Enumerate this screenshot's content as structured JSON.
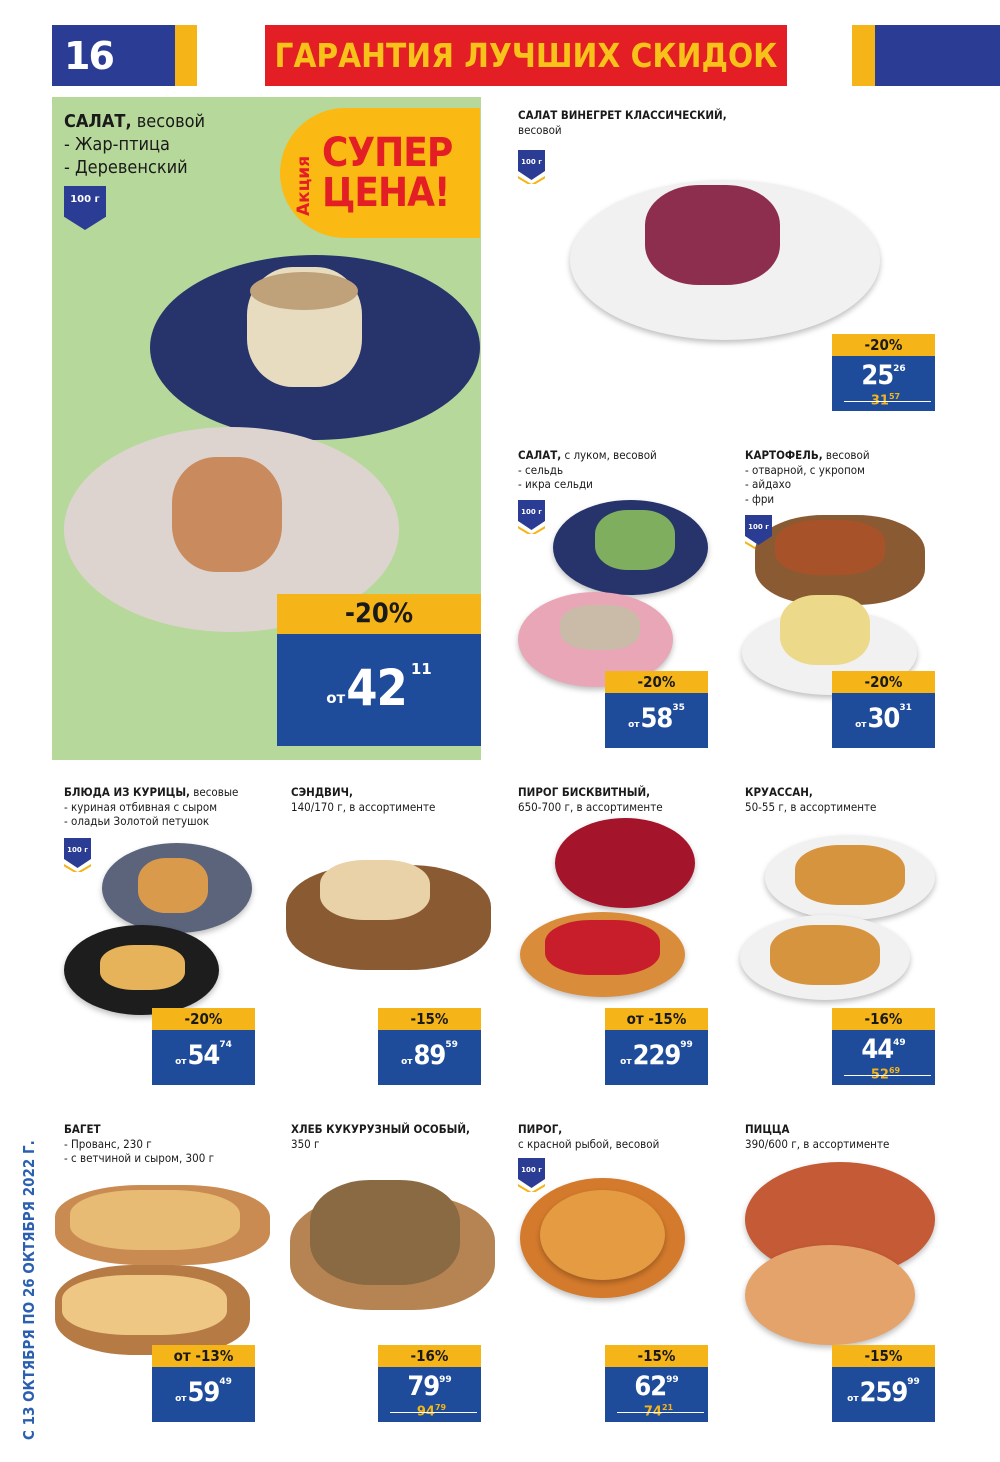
{
  "header": {
    "page_number": "16",
    "banner": "ГАРАНТИЯ ЛУЧШИХ СКИДОК"
  },
  "validity": "С 13 ОКТЯБРЯ ПО 26 ОКТЯБРЯ 2022 Г.",
  "colors": {
    "blue": "#2b3c94",
    "price_blue": "#1e4c9a",
    "yellow": "#f5b518",
    "red": "#e31e24",
    "hero_green": "#b6d99b"
  },
  "hero": {
    "title_bold": "САЛАТ,",
    "title_rest": " весовой",
    "lines": [
      "- Жар-птица",
      "- Деревенский"
    ],
    "weight": "100 г",
    "promo": {
      "small": "Акция",
      "line1": "СУПЕР",
      "line2": "ЦЕНА!"
    },
    "price": {
      "discount": "-20%",
      "prefix": "от",
      "int": "42",
      "dec": "11"
    }
  },
  "products": [
    {
      "title_bold": "САЛАТ ВИНЕГРЕТ КЛАССИЧЕСКИЙ,",
      "title_rest": "",
      "lines": [
        "весовой"
      ],
      "weight": "100 г",
      "price": {
        "discount": "-20%",
        "prefix": "",
        "int": "25",
        "dec": "26",
        "old_int": "31",
        "old_dec": "57"
      }
    },
    {
      "title_bold": "САЛАТ,",
      "title_rest": " с луком, весовой",
      "lines": [
        "- сельдь",
        "- икра сельди"
      ],
      "weight": "100 г",
      "price": {
        "discount": "-20%",
        "prefix": "от",
        "int": "58",
        "dec": "35"
      }
    },
    {
      "title_bold": "КАРТОФЕЛЬ,",
      "title_rest": " весовой",
      "lines": [
        "- отварной, с укропом",
        "- айдахо",
        "- фри"
      ],
      "weight": "100 г",
      "price": {
        "discount": "-20%",
        "prefix": "от",
        "int": "30",
        "dec": "31"
      }
    },
    {
      "title_bold": "БЛЮДА ИЗ КУРИЦЫ,",
      "title_rest": " весовые",
      "lines": [
        "- куриная отбивная с сыром",
        "- оладьи Золотой петушок"
      ],
      "weight": "100 г",
      "price": {
        "discount": "-20%",
        "prefix": "от",
        "int": "54",
        "dec": "74"
      }
    },
    {
      "title_bold": "СЭНДВИЧ,",
      "title_rest": "",
      "lines": [
        "140/170 г, в ассортименте"
      ],
      "weight": "",
      "price": {
        "discount": "-15%",
        "prefix": "от",
        "int": "89",
        "dec": "59"
      }
    },
    {
      "title_bold": "ПИРОГ БИСКВИТНЫЙ,",
      "title_rest": "",
      "lines": [
        "650-700 г, в ассортименте"
      ],
      "weight": "",
      "price": {
        "discount": "от -15%",
        "prefix": "от",
        "int": "229",
        "dec": "99"
      }
    },
    {
      "title_bold": "КРУАССАН,",
      "title_rest": "",
      "lines": [
        "50-55 г, в ассортименте"
      ],
      "weight": "",
      "price": {
        "discount": "-16%",
        "prefix": "",
        "int": "44",
        "dec": "49",
        "old_int": "52",
        "old_dec": "69"
      }
    },
    {
      "title_bold": "БАГЕТ",
      "title_rest": "",
      "lines": [
        "- Прованс, 230 г",
        "- с ветчиной и сыром, 300 г"
      ],
      "weight": "",
      "price": {
        "discount": "от -13%",
        "prefix": "от",
        "int": "59",
        "dec": "49"
      }
    },
    {
      "title_bold": "ХЛЕБ КУКУРУЗНЫЙ ОСОБЫЙ,",
      "title_rest": "",
      "lines": [
        "350 г"
      ],
      "weight": "",
      "price": {
        "discount": "-16%",
        "prefix": "",
        "int": "79",
        "dec": "99",
        "old_int": "94",
        "old_dec": "79"
      }
    },
    {
      "title_bold": "ПИРОГ,",
      "title_rest": "",
      "lines": [
        "с красной рыбой, весовой"
      ],
      "weight": "100 г",
      "price": {
        "discount": "-15%",
        "prefix": "",
        "int": "62",
        "dec": "99",
        "old_int": "74",
        "old_dec": "21"
      }
    },
    {
      "title_bold": "ПИЦЦА",
      "title_rest": "",
      "lines": [
        "390/600 г, в ассортименте"
      ],
      "weight": "",
      "price": {
        "discount": "-15%",
        "prefix": "от",
        "int": "259",
        "dec": "99"
      }
    }
  ]
}
